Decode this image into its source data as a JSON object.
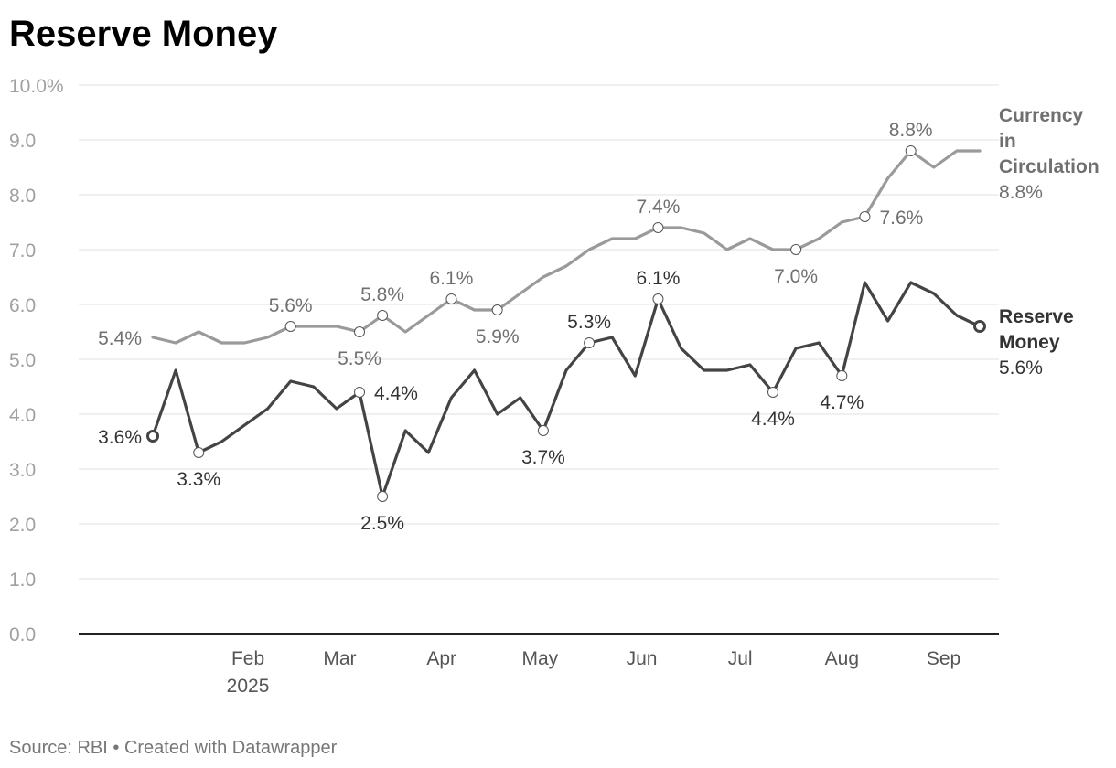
{
  "footer": "Source: RBI • Created with Datawrapper",
  "chart_data": {
    "type": "line",
    "title": "Reserve Money",
    "xlabel": "",
    "ylabel": "",
    "x_unit": "week",
    "x_start": "2025-01-03",
    "x": [
      "2025-01-03",
      "2025-01-10",
      "2025-01-17",
      "2025-01-24",
      "2025-01-31",
      "2025-02-07",
      "2025-02-14",
      "2025-02-21",
      "2025-02-28",
      "2025-03-07",
      "2025-03-14",
      "2025-03-21",
      "2025-03-28",
      "2025-04-04",
      "2025-04-11",
      "2025-04-18",
      "2025-04-25",
      "2025-05-02",
      "2025-05-09",
      "2025-05-16",
      "2025-05-23",
      "2025-05-30",
      "2025-06-06",
      "2025-06-13",
      "2025-06-20",
      "2025-06-27",
      "2025-07-04",
      "2025-07-11",
      "2025-07-18",
      "2025-07-25",
      "2025-08-01",
      "2025-08-08",
      "2025-08-15",
      "2025-08-22",
      "2025-08-29",
      "2025-09-05",
      "2025-09-12"
    ],
    "ylim": [
      0,
      10
    ],
    "y_ticks": [
      "0.0",
      "1.0",
      "2.0",
      "3.0",
      "4.0",
      "5.0",
      "6.0",
      "7.0",
      "8.0",
      "9.0",
      "10.0%"
    ],
    "x_ticks": [
      {
        "label": "Feb",
        "sublabel": "2025",
        "date": "2025-02-01"
      },
      {
        "label": "Mar",
        "sublabel": "",
        "date": "2025-03-01"
      },
      {
        "label": "Apr",
        "sublabel": "",
        "date": "2025-04-01"
      },
      {
        "label": "May",
        "sublabel": "",
        "date": "2025-05-01"
      },
      {
        "label": "Jun",
        "sublabel": "",
        "date": "2025-06-01"
      },
      {
        "label": "Jul",
        "sublabel": "",
        "date": "2025-07-01"
      },
      {
        "label": "Aug",
        "sublabel": "",
        "date": "2025-08-01"
      },
      {
        "label": "Sep",
        "sublabel": "",
        "date": "2025-09-01"
      }
    ],
    "grid": true,
    "legend": "inline-right",
    "series": [
      {
        "key": "cic",
        "name": "Currency in Circulation",
        "name_lines": [
          "Currency",
          "in",
          "Circulation"
        ],
        "end_value_label": "8.8%",
        "color": "#9a9a9a",
        "label_color": "#707070",
        "values": [
          5.4,
          5.3,
          5.5,
          5.3,
          5.3,
          5.4,
          5.6,
          5.6,
          5.6,
          5.5,
          5.8,
          5.5,
          5.8,
          6.1,
          5.9,
          5.9,
          6.2,
          6.5,
          6.7,
          7.0,
          7.2,
          7.2,
          7.4,
          7.4,
          7.3,
          7.0,
          7.2,
          7.0,
          7.0,
          7.2,
          7.5,
          7.6,
          8.3,
          8.8,
          8.5,
          8.8,
          8.8
        ],
        "annotations": [
          {
            "index": 0,
            "text": "5.4%",
            "pos": "left",
            "marker": false
          },
          {
            "index": 6,
            "text": "5.6%",
            "pos": "above",
            "marker": true
          },
          {
            "index": 9,
            "text": "5.5%",
            "pos": "below",
            "marker": true
          },
          {
            "index": 10,
            "text": "5.8%",
            "pos": "above",
            "marker": true
          },
          {
            "index": 13,
            "text": "6.1%",
            "pos": "above",
            "marker": true
          },
          {
            "index": 15,
            "text": "5.9%",
            "pos": "below",
            "marker": true
          },
          {
            "index": 22,
            "text": "7.4%",
            "pos": "above",
            "marker": true
          },
          {
            "index": 28,
            "text": "7.0%",
            "pos": "below",
            "marker": true
          },
          {
            "index": 31,
            "text": "7.6%",
            "pos": "right",
            "marker": true
          },
          {
            "index": 33,
            "text": "8.8%",
            "pos": "above",
            "marker": true
          }
        ]
      },
      {
        "key": "rm",
        "name": "Reserve Money",
        "name_lines": [
          "Reserve",
          "Money"
        ],
        "end_value_label": "5.6%",
        "color": "#444444",
        "label_color": "#333333",
        "values": [
          3.6,
          4.8,
          3.3,
          3.5,
          3.8,
          4.1,
          4.6,
          4.5,
          4.1,
          4.4,
          2.5,
          3.7,
          3.3,
          4.3,
          4.8,
          4.0,
          4.3,
          3.7,
          4.8,
          5.3,
          5.4,
          4.7,
          6.1,
          5.2,
          4.8,
          4.8,
          4.9,
          4.4,
          5.2,
          5.3,
          4.7,
          6.4,
          5.7,
          6.4,
          6.2,
          5.8,
          5.6
        ],
        "annotations": [
          {
            "index": 0,
            "text": "3.6%",
            "pos": "left",
            "marker": "start"
          },
          {
            "index": 2,
            "text": "3.3%",
            "pos": "below",
            "marker": true
          },
          {
            "index": 9,
            "text": "4.4%",
            "pos": "right",
            "marker": true
          },
          {
            "index": 10,
            "text": "2.5%",
            "pos": "below",
            "marker": true
          },
          {
            "index": 17,
            "text": "3.7%",
            "pos": "below",
            "marker": true
          },
          {
            "index": 19,
            "text": "5.3%",
            "pos": "above",
            "marker": true
          },
          {
            "index": 22,
            "text": "6.1%",
            "pos": "above",
            "marker": true
          },
          {
            "index": 27,
            "text": "4.4%",
            "pos": "below",
            "marker": true
          },
          {
            "index": 30,
            "text": "4.7%",
            "pos": "below",
            "marker": true
          },
          {
            "index": 36,
            "text": "",
            "pos": "none",
            "marker": "end"
          }
        ]
      }
    ]
  }
}
